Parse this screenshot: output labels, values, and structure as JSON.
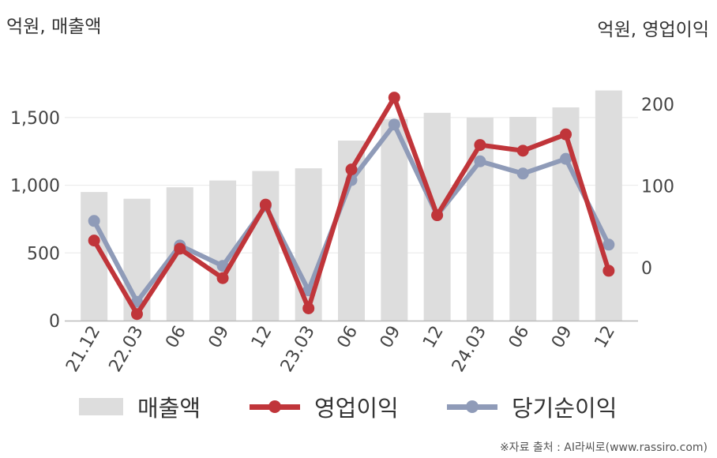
{
  "header": {
    "left_unit": "억원, 매출액",
    "right_unit": "억원, 영업이익"
  },
  "source": "※자료 출처 : AI라씨로(www.rassiro.com)",
  "colors": {
    "revenue": "#dddddd",
    "operating_profit": "#c0353a",
    "net_income": "#8f9bb8",
    "axis": "#bbbbbb",
    "grid": "#e8e8e8",
    "text": "#444444"
  },
  "chart_data": {
    "type": "bar",
    "categories": [
      "21.12",
      "22.03",
      "06",
      "09",
      "12",
      "23.03",
      "06",
      "09",
      "12",
      "24.03",
      "06",
      "09",
      "12"
    ],
    "series": [
      {
        "name": "매출액",
        "type": "bar",
        "axis": "left",
        "values": [
          950,
          900,
          985,
          1035,
          1105,
          1125,
          1330,
          1490,
          1535,
          1500,
          1505,
          1575,
          1700
        ]
      },
      {
        "name": "영업이익",
        "type": "line",
        "axis": "right",
        "values": [
          33,
          -57,
          23,
          -13,
          77,
          -50,
          120,
          208,
          64,
          150,
          143,
          163,
          -4
        ]
      },
      {
        "name": "당기순이익",
        "type": "line",
        "axis": "right",
        "values": [
          57,
          -42,
          27,
          2,
          75,
          -28,
          107,
          175,
          64,
          130,
          115,
          133,
          28
        ]
      }
    ],
    "y_left": {
      "ylim": [
        0,
        1750
      ],
      "ticks": [
        0,
        500,
        1000,
        1500
      ],
      "tick_labels": [
        "0",
        "500",
        "1,000",
        "1,500"
      ]
    },
    "y_right": {
      "ylim": [
        -65,
        225
      ],
      "ticks": [
        0,
        100,
        200
      ],
      "tick_labels": [
        "0",
        "100",
        "200"
      ]
    },
    "grid": true,
    "legend_position": "bottom"
  }
}
